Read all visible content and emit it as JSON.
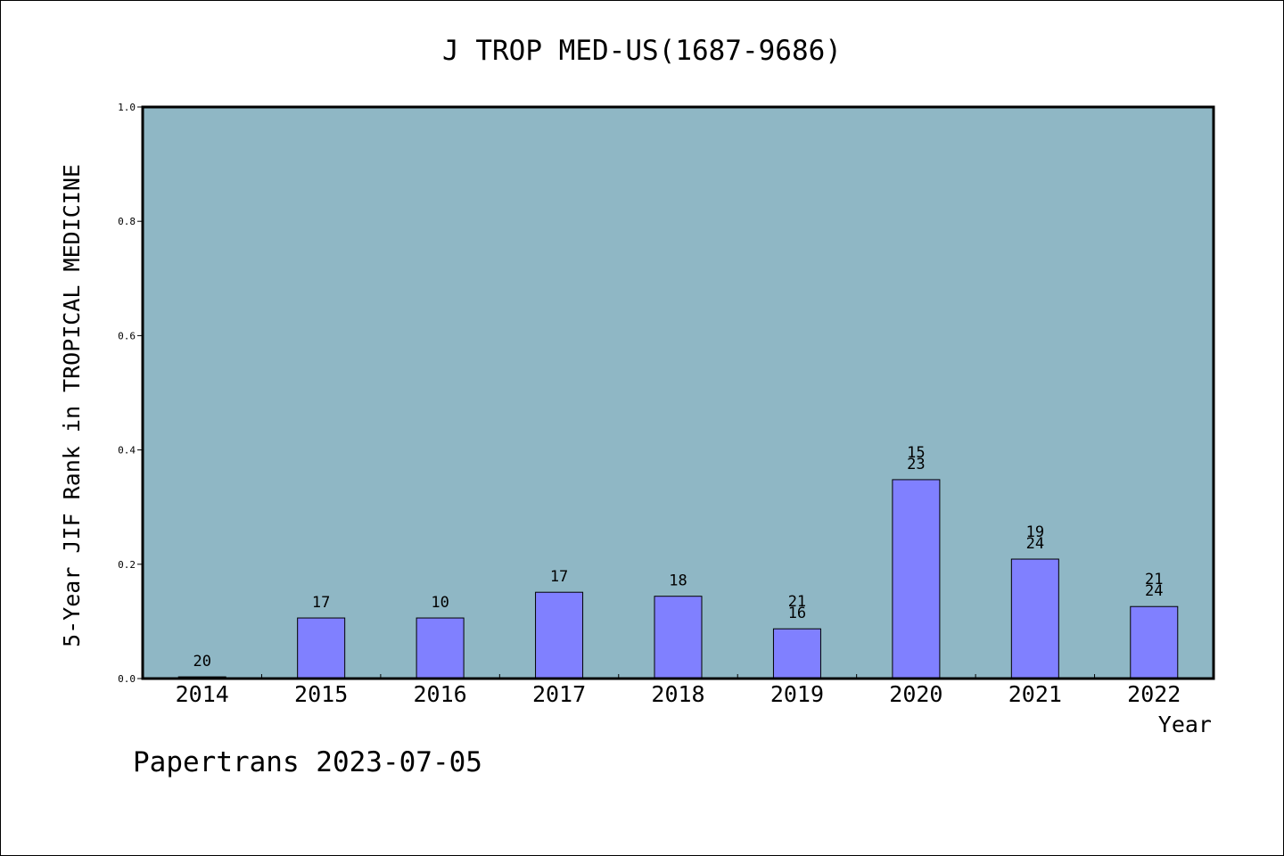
{
  "chart_data": {
    "type": "bar",
    "title": "J TROP MED-US(1687-9686)",
    "xlabel": "Year",
    "ylabel": "5-Year JIF Rank in TROPICAL MEDICINE",
    "ylim": [
      0.0,
      1.0
    ],
    "yticks": [
      "0.0",
      "0.2",
      "0.4",
      "0.6",
      "0.8",
      "1.0"
    ],
    "grid": false,
    "categories": [
      "2014",
      "2015",
      "2016",
      "2017",
      "2018",
      "2019",
      "2020",
      "2021",
      "2022"
    ],
    "values": [
      0.003,
      0.106,
      0.106,
      0.151,
      0.144,
      0.087,
      0.348,
      0.209,
      0.126
    ],
    "bar_labels": [
      [
        "20"
      ],
      [
        "17"
      ],
      [
        "10"
      ],
      [
        "17"
      ],
      [
        "18"
      ],
      [
        "21",
        "16"
      ],
      [
        "15",
        "23"
      ],
      [
        "19",
        "24"
      ],
      [
        "21",
        "24"
      ]
    ],
    "colors": {
      "plot_bg": "#8fb7c5",
      "bar": "#8080ff",
      "axis": "#000000"
    }
  },
  "footer": "Papertrans 2023-07-05"
}
